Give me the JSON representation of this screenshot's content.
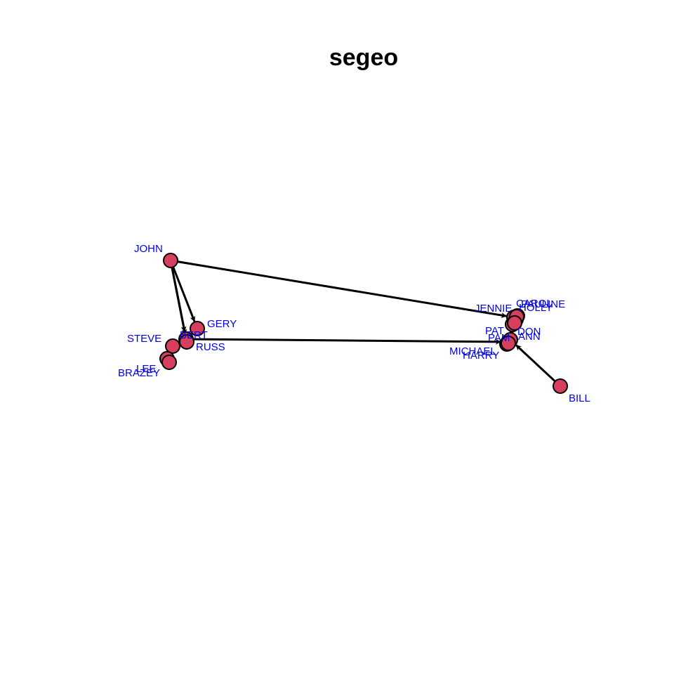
{
  "title": "segeo",
  "colors": {
    "node_fill": "#d6405e",
    "label": "#0000ee",
    "edge": "#000000"
  },
  "nodes": [
    {
      "id": "john",
      "label": "JOHN"
    },
    {
      "id": "gery",
      "label": "GERY"
    },
    {
      "id": "bert",
      "label": "BERT"
    },
    {
      "id": "russ",
      "label": "RUSS"
    },
    {
      "id": "steve",
      "label": "STEVE"
    },
    {
      "id": "lee",
      "label": "LEE"
    },
    {
      "id": "brazey",
      "label": "BRAZEY"
    },
    {
      "id": "jennie",
      "label": "JENNIE"
    },
    {
      "id": "holly",
      "label": "HOLLY"
    },
    {
      "id": "pauline",
      "label": "PAULINE"
    },
    {
      "id": "carol",
      "label": "CAROL"
    },
    {
      "id": "pat",
      "label": "PAT"
    },
    {
      "id": "don",
      "label": "DON"
    },
    {
      "id": "pam",
      "label": "PAM"
    },
    {
      "id": "ann",
      "label": "ANN"
    },
    {
      "id": "michael",
      "label": "MICHAEL"
    },
    {
      "id": "harry",
      "label": "HARRY"
    },
    {
      "id": "bill",
      "label": "BILL"
    }
  ],
  "edges": [
    {
      "from": "john",
      "to": "jennie"
    },
    {
      "from": "john",
      "to": "bert"
    },
    {
      "from": "john",
      "to": "gery"
    },
    {
      "from": "john",
      "to": "russ"
    },
    {
      "from": "bert",
      "to": "pam"
    },
    {
      "from": "bill",
      "to": "ann"
    },
    {
      "from": "steve",
      "to": "bert"
    },
    {
      "from": "russ",
      "to": "steve"
    },
    {
      "from": "lee",
      "to": "brazey"
    },
    {
      "from": "russ",
      "to": "bert"
    },
    {
      "from": "pat",
      "to": "holly"
    },
    {
      "from": "don",
      "to": "pauline"
    },
    {
      "from": "pam",
      "to": "carol"
    },
    {
      "from": "ann",
      "to": "holly"
    },
    {
      "from": "michael",
      "to": "pam"
    },
    {
      "from": "harry",
      "to": "pam"
    },
    {
      "from": "pam",
      "to": "jennie"
    },
    {
      "from": "don",
      "to": "holly"
    }
  ]
}
